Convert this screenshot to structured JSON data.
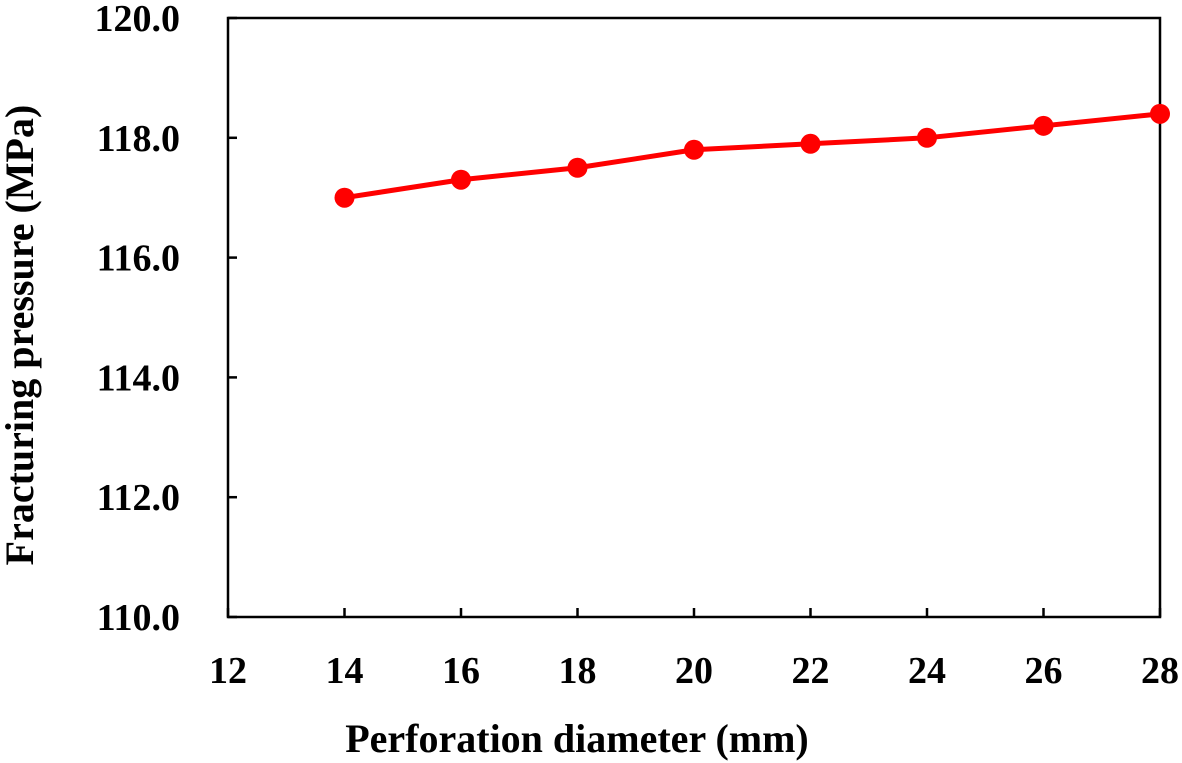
{
  "chart_data": {
    "type": "line",
    "title": "",
    "xlabel": "Perforation diameter (mm)",
    "ylabel": "Fracturing pressure (MPa)",
    "xlim": [
      12,
      28
    ],
    "ylim": [
      110.0,
      120.0
    ],
    "x_ticks": [
      "12",
      "14",
      "16",
      "18",
      "20",
      "22",
      "24",
      "26",
      "28"
    ],
    "y_ticks": [
      "110.0",
      "112.0",
      "114.0",
      "116.0",
      "118.0",
      "120.0"
    ],
    "grid": false,
    "legend": "none",
    "series": [
      {
        "color": "#ff0000",
        "marker": "circle",
        "x": [
          14,
          16,
          18,
          20,
          22,
          24,
          26,
          28
        ],
        "y": [
          117.0,
          117.3,
          117.5,
          117.8,
          117.9,
          118.0,
          118.2,
          118.4
        ]
      }
    ]
  }
}
